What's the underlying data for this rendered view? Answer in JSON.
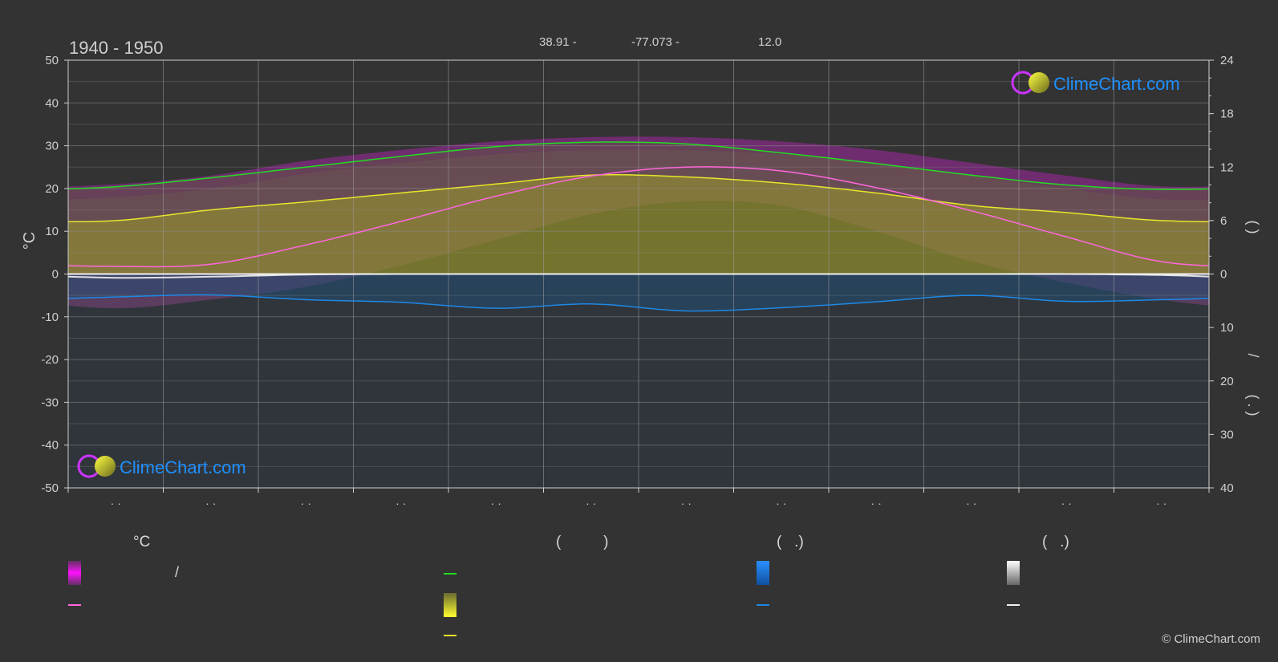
{
  "header": {
    "period": "1940 - 1950",
    "lat": "38.91 -",
    "lon": "-77.073 -",
    "elev": "12.0"
  },
  "axes": {
    "left_unit": "°C",
    "left_ticks": [
      "50",
      "40",
      "30",
      "20",
      "10",
      "0",
      "-10",
      "-20",
      "-30",
      "-40",
      "-50"
    ],
    "right_ticks_top": [
      "24",
      "18",
      "12",
      "6",
      "0"
    ],
    "right_ticks_bottom": [
      "10",
      "20",
      "30",
      "40"
    ],
    "right_label_top": "(   )",
    "right_label_mid": "/",
    "right_label_bottom": "( . )",
    "month_labels": [
      "· ·",
      "· ·",
      "· ·",
      "· ·",
      "· ·",
      "· ·",
      "· ·",
      "· ·",
      "· ·",
      "· ·",
      "· ·",
      "· ·"
    ]
  },
  "watermark": {
    "brand": "ClimeChart.com"
  },
  "legend": {
    "col1_head": "°C",
    "col1_item1": "/",
    "col2_head": "(          )",
    "col3_head": "(   .)",
    "col4_head": "(   .)"
  },
  "footer": {
    "copyright": "© ClimeChart.com"
  },
  "colors": {
    "background": "#333333",
    "daylight": "#22dd22",
    "sunshine": "#e6e62a",
    "temp_mean": "#ff66dd",
    "temp_range": "#e020e0",
    "rain": "#1e88e5",
    "snow": "#e0e0e0",
    "brand": "#1e90ff"
  },
  "chart_data": {
    "type": "line",
    "title": "1940 - 1950",
    "ylabel": "°C",
    "ylim": [
      -50,
      50
    ],
    "y2lim_hours": [
      0,
      24
    ],
    "y2lim_precip": [
      0,
      40
    ],
    "grid": true,
    "x": [
      0.5,
      1.5,
      2.5,
      3.5,
      4.5,
      5.5,
      6.5,
      7.5,
      8.5,
      9.5,
      10.5,
      11.5
    ],
    "series": [
      {
        "key": "daylight_hours",
        "axis": "hours",
        "values": [
          9.8,
          10.8,
          12.0,
          13.2,
          14.3,
          14.8,
          14.6,
          13.6,
          12.4,
          11.1,
          10.0,
          9.5
        ]
      },
      {
        "key": "sunshine_hours",
        "axis": "hours",
        "values": [
          6.0,
          7.2,
          8.1,
          9.1,
          10.1,
          11.1,
          10.9,
          10.2,
          9.1,
          7.7,
          6.9,
          6.0
        ]
      },
      {
        "key": "temp_mean",
        "axis": "celsius",
        "values": [
          1.8,
          2.3,
          6.8,
          12.3,
          18.2,
          22.9,
          25.0,
          24.1,
          20.2,
          14.8,
          8.7,
          2.9
        ]
      },
      {
        "key": "temp_max_band",
        "axis": "celsius",
        "values": [
          18.0,
          20.0,
          23.5,
          26.0,
          28.0,
          29.0,
          29.0,
          28.0,
          26.0,
          23.0,
          20.0,
          17.5
        ]
      },
      {
        "key": "temp_min_band",
        "axis": "celsius",
        "values": [
          -8.0,
          -6.0,
          -3.0,
          2.0,
          8.0,
          14.0,
          17.0,
          16.0,
          10.0,
          3.0,
          -2.0,
          -6.0
        ]
      },
      {
        "key": "rain_mm_per_day",
        "axis": "precip",
        "values": [
          4.3,
          3.9,
          4.8,
          5.3,
          6.4,
          5.6,
          6.9,
          6.3,
          5.2,
          4.0,
          5.1,
          4.8
        ]
      },
      {
        "key": "snow_mm_per_day",
        "axis": "precip",
        "values": [
          0.7,
          0.5,
          0.1,
          0.0,
          0.0,
          0.0,
          0.0,
          0.0,
          0.0,
          0.0,
          0.0,
          0.2
        ]
      }
    ]
  }
}
